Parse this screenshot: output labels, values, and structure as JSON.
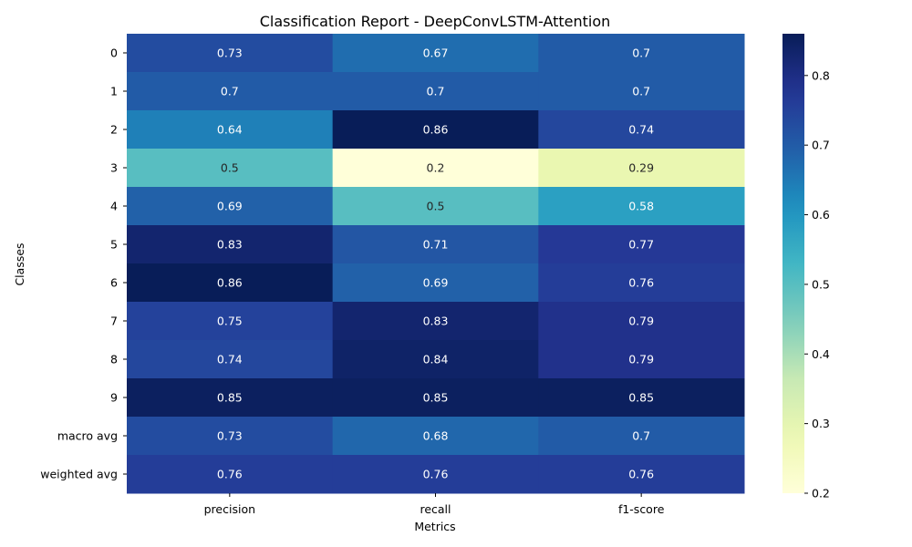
{
  "chart_data": {
    "type": "heatmap",
    "title": "Classification Report - DeepConvLSTM-Attention",
    "xlabel": "Metrics",
    "ylabel": "Classes",
    "x_categories": [
      "precision",
      "recall",
      "f1-score"
    ],
    "y_categories": [
      "0",
      "1",
      "2",
      "3",
      "4",
      "5",
      "6",
      "7",
      "8",
      "9",
      "macro avg",
      "weighted avg"
    ],
    "values": [
      [
        0.73,
        0.67,
        0.7
      ],
      [
        0.7,
        0.7,
        0.7
      ],
      [
        0.64,
        0.86,
        0.74
      ],
      [
        0.5,
        0.2,
        0.29
      ],
      [
        0.69,
        0.5,
        0.58
      ],
      [
        0.83,
        0.71,
        0.77
      ],
      [
        0.86,
        0.69,
        0.76
      ],
      [
        0.75,
        0.83,
        0.79
      ],
      [
        0.74,
        0.84,
        0.79
      ],
      [
        0.85,
        0.85,
        0.85
      ],
      [
        0.73,
        0.68,
        0.7
      ],
      [
        0.76,
        0.76,
        0.76
      ]
    ],
    "colormap": "YlGnBu",
    "vmin": 0.2,
    "vmax": 0.86,
    "colorbar_ticks": [
      0.2,
      0.3,
      0.4,
      0.5,
      0.6,
      0.7,
      0.8
    ],
    "annotations": true,
    "grid": false,
    "legend": "colorbar-right"
  }
}
